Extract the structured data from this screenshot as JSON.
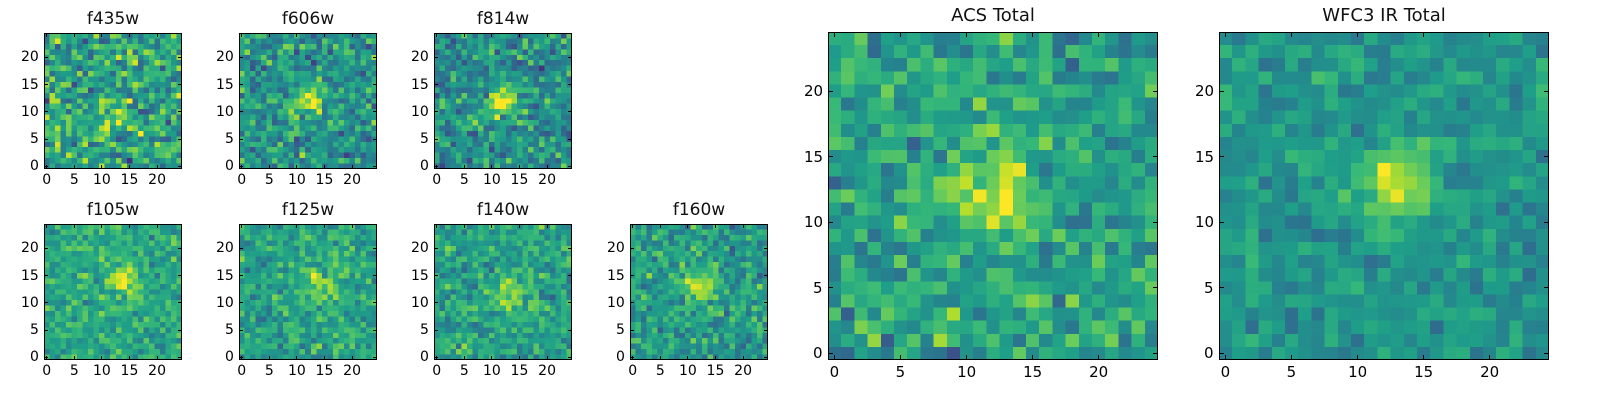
{
  "chart_data": [
    {
      "type": "heatmap",
      "title": "f435w",
      "colormap": "viridis",
      "grid_size": [
        25,
        25
      ],
      "xlim": [
        -0.5,
        24.5
      ],
      "ylim": [
        -0.5,
        24.5
      ],
      "xticks": [
        0,
        5,
        10,
        15,
        20
      ],
      "yticks": [
        0,
        5,
        10,
        15,
        20
      ],
      "peak": {
        "x": 12,
        "y": 10,
        "amplitude": 0.15
      },
      "noise": 0.32,
      "level": 0.58,
      "seed": 11
    },
    {
      "type": "heatmap",
      "title": "f606w",
      "colormap": "viridis",
      "grid_size": [
        25,
        25
      ],
      "xlim": [
        -0.5,
        24.5
      ],
      "ylim": [
        -0.5,
        24.5
      ],
      "xticks": [
        0,
        5,
        10,
        15,
        20
      ],
      "yticks": [
        0,
        5,
        10,
        15,
        20
      ],
      "peak": {
        "x": 12,
        "y": 12,
        "amplitude": 0.35
      },
      "noise": 0.26,
      "level": 0.52,
      "seed": 23
    },
    {
      "type": "heatmap",
      "title": "f814w",
      "colormap": "viridis",
      "grid_size": [
        25,
        25
      ],
      "xlim": [
        -0.5,
        24.5
      ],
      "ylim": [
        -0.5,
        24.5
      ],
      "xticks": [
        0,
        5,
        10,
        15,
        20
      ],
      "yticks": [
        0,
        5,
        10,
        15,
        20
      ],
      "peak": {
        "x": 12,
        "y": 12,
        "amplitude": 0.45
      },
      "noise": 0.26,
      "level": 0.5,
      "seed": 37
    },
    {
      "type": "heatmap",
      "title": "f105w",
      "colormap": "viridis",
      "grid_size": [
        25,
        25
      ],
      "xlim": [
        -0.5,
        24.5
      ],
      "ylim": [
        -0.5,
        24.5
      ],
      "xticks": [
        0,
        5,
        10,
        15,
        20
      ],
      "yticks": [
        0,
        5,
        10,
        15,
        20
      ],
      "peak": {
        "x": 14,
        "y": 14,
        "amplitude": 0.3
      },
      "noise": 0.18,
      "level": 0.6,
      "seed": 41
    },
    {
      "type": "heatmap",
      "title": "f125w",
      "colormap": "viridis",
      "grid_size": [
        25,
        25
      ],
      "xlim": [
        -0.5,
        24.5
      ],
      "ylim": [
        -0.5,
        24.5
      ],
      "xticks": [
        0,
        5,
        10,
        15,
        20
      ],
      "yticks": [
        0,
        5,
        10,
        15,
        20
      ],
      "peak": {
        "x": 14,
        "y": 13,
        "amplitude": 0.3
      },
      "noise": 0.2,
      "level": 0.58,
      "seed": 53
    },
    {
      "type": "heatmap",
      "title": "f140w",
      "colormap": "viridis",
      "grid_size": [
        25,
        25
      ],
      "xlim": [
        -0.5,
        24.5
      ],
      "ylim": [
        -0.5,
        24.5
      ],
      "xticks": [
        0,
        5,
        10,
        15,
        20
      ],
      "yticks": [
        0,
        5,
        10,
        15,
        20
      ],
      "peak": {
        "x": 13,
        "y": 12,
        "amplitude": 0.3
      },
      "noise": 0.2,
      "level": 0.58,
      "seed": 67
    },
    {
      "type": "heatmap",
      "title": "f160w",
      "colormap": "viridis",
      "grid_size": [
        25,
        25
      ],
      "xlim": [
        -0.5,
        24.5
      ],
      "ylim": [
        -0.5,
        24.5
      ],
      "xticks": [
        0,
        5,
        10,
        15,
        20
      ],
      "yticks": [
        0,
        5,
        10,
        15,
        20
      ],
      "peak": {
        "x": 12,
        "y": 13,
        "amplitude": 0.35
      },
      "noise": 0.22,
      "level": 0.55,
      "seed": 79
    },
    {
      "type": "heatmap",
      "title": "ACS Total",
      "colormap": "viridis",
      "grid_size": [
        25,
        25
      ],
      "xlim": [
        -0.5,
        24.5
      ],
      "ylim": [
        -0.5,
        24.5
      ],
      "xticks": [
        0,
        5,
        10,
        15,
        20
      ],
      "yticks": [
        0,
        5,
        10,
        15,
        20
      ],
      "peak": {
        "x": 12,
        "y": 12,
        "amplitude": 0.4
      },
      "noise": 0.22,
      "level": 0.57,
      "seed": 97
    },
    {
      "type": "heatmap",
      "title": "WFC3 IR Total",
      "colormap": "viridis",
      "grid_size": [
        25,
        25
      ],
      "xlim": [
        -0.5,
        24.5
      ],
      "ylim": [
        -0.5,
        24.5
      ],
      "xticks": [
        0,
        5,
        10,
        15,
        20
      ],
      "yticks": [
        0,
        5,
        10,
        15,
        20
      ],
      "peak": {
        "x": 13,
        "y": 13,
        "amplitude": 0.4
      },
      "noise": 0.14,
      "level": 0.52,
      "seed": 131
    }
  ]
}
